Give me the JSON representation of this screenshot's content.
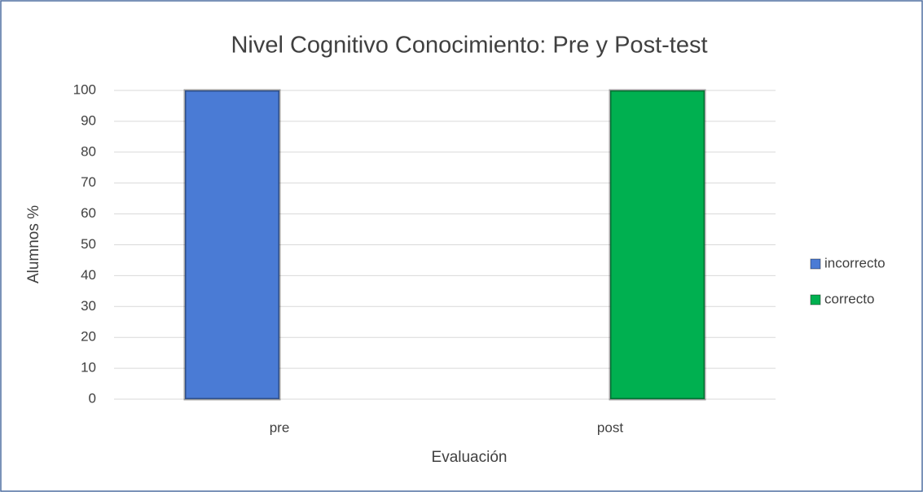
{
  "chart_data": {
    "type": "bar",
    "title": "Nivel Cognitivo Conocimiento: Pre y Post-test",
    "x_label": "Evaluación",
    "y_label": "Alumnos %",
    "categories": [
      "pre",
      "post"
    ],
    "series": [
      {
        "name": "incorrecto",
        "color": "#4a7bd5",
        "values": [
          100,
          0
        ]
      },
      {
        "name": "correcto",
        "color": "#00b050",
        "values": [
          0,
          100
        ]
      }
    ],
    "ylim": [
      0,
      100
    ],
    "yticks": [
      0,
      10,
      20,
      30,
      40,
      50,
      60,
      70,
      80,
      90,
      100
    ],
    "grid": true,
    "legend": "right"
  }
}
